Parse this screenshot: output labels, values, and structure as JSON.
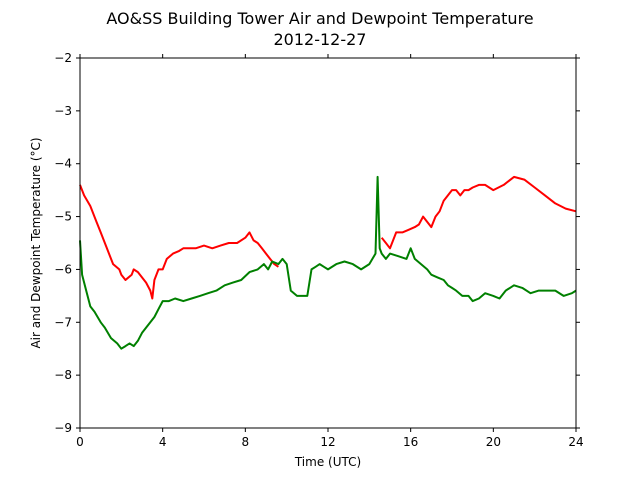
{
  "chart_data": {
    "type": "line",
    "title": "AO&SS Building Tower Air and Dewpoint Temperature",
    "subtitle": "2012-12-27",
    "xlabel": "Time (UTC)",
    "ylabel": "Air and Dewpoint Temperature (°C)",
    "xlim": [
      0,
      24
    ],
    "ylim": [
      -9,
      -2
    ],
    "xticks": [
      0,
      4,
      8,
      12,
      16,
      20,
      24
    ],
    "yticks": [
      -9,
      -8,
      -7,
      -6,
      -5,
      -4,
      -3,
      -2
    ],
    "grid": false,
    "legend": "none",
    "series": [
      {
        "color": "#ff0000",
        "x": [
          0,
          0.2,
          0.5,
          0.8,
          1.0,
          1.3,
          1.6,
          1.9,
          2.0,
          2.2,
          2.5,
          2.6,
          2.8,
          3.0,
          3.2,
          3.4,
          3.5,
          3.6,
          3.8,
          4.0,
          4.2,
          4.5,
          4.8,
          5.0,
          5.3,
          5.6,
          6.0,
          6.4,
          6.8,
          7.2,
          7.6,
          8.0,
          8.2,
          8.4,
          8.6,
          8.8,
          9.0,
          9.2,
          9.4,
          9.6
        ],
        "y": [
          -4.4,
          -4.6,
          -4.8,
          -5.1,
          -5.3,
          -5.6,
          -5.9,
          -6.0,
          -6.1,
          -6.2,
          -6.1,
          -6.0,
          -6.05,
          -6.15,
          -6.25,
          -6.4,
          -6.55,
          -6.2,
          -6.0,
          -6.0,
          -5.8,
          -5.7,
          -5.65,
          -5.6,
          -5.6,
          -5.6,
          -5.55,
          -5.6,
          -5.55,
          -5.5,
          -5.5,
          -5.4,
          -5.3,
          -5.45,
          -5.5,
          -5.6,
          -5.7,
          -5.8,
          -5.9,
          -5.95
        ]
      },
      {
        "color": "#ff0000",
        "x": [
          14.6,
          14.8,
          15.0,
          15.3,
          15.6,
          15.9,
          16.2,
          16.4,
          16.6,
          16.8,
          17.0,
          17.2,
          17.4,
          17.6,
          17.8,
          18.0,
          18.2,
          18.4,
          18.6,
          18.8,
          19.0,
          19.3,
          19.6,
          20.0,
          20.5,
          21.0,
          21.5,
          22.0,
          22.5,
          23.0,
          23.5,
          24.0
        ],
        "y": [
          -5.4,
          -5.5,
          -5.6,
          -5.3,
          -5.3,
          -5.25,
          -5.2,
          -5.15,
          -5.0,
          -5.1,
          -5.2,
          -5.0,
          -4.9,
          -4.7,
          -4.6,
          -4.5,
          -4.5,
          -4.6,
          -4.5,
          -4.5,
          -4.45,
          -4.4,
          -4.4,
          -4.5,
          -4.4,
          -4.25,
          -4.3,
          -4.45,
          -4.6,
          -4.75,
          -4.85,
          -4.9
        ]
      },
      {
        "color": "#008000",
        "x": [
          0,
          0.1,
          0.3,
          0.5,
          0.7,
          1.0,
          1.2,
          1.5,
          1.8,
          2.0,
          2.2,
          2.4,
          2.6,
          2.8,
          3.0,
          3.2,
          3.4,
          3.6,
          3.8,
          4.0,
          4.3,
          4.6,
          5.0,
          5.4,
          5.8,
          6.2,
          6.6,
          7.0,
          7.4,
          7.8,
          8.2,
          8.6,
          8.9,
          9.1,
          9.3,
          9.6,
          9.8,
          10.0,
          10.2,
          10.5,
          10.8,
          11.0,
          11.2,
          11.4,
          11.6,
          11.8,
          12.0,
          12.4,
          12.8,
          13.2,
          13.6,
          14.0,
          14.3,
          14.4,
          14.5,
          14.6,
          14.8,
          15.0,
          15.4,
          15.8,
          16.0,
          16.2,
          16.5,
          16.8,
          17.0,
          17.3,
          17.6,
          17.8,
          18.0,
          18.2,
          18.5,
          18.8,
          19.0,
          19.3,
          19.6,
          20.0,
          20.3,
          20.6,
          21.0,
          21.4,
          21.8,
          22.2,
          22.6,
          23.0,
          23.4,
          23.8,
          24.0
        ],
        "y": [
          -5.45,
          -6.1,
          -6.4,
          -6.7,
          -6.8,
          -7.0,
          -7.1,
          -7.3,
          -7.4,
          -7.5,
          -7.45,
          -7.4,
          -7.45,
          -7.35,
          -7.2,
          -7.1,
          -7.0,
          -6.9,
          -6.75,
          -6.6,
          -6.6,
          -6.55,
          -6.6,
          -6.55,
          -6.5,
          -6.45,
          -6.4,
          -6.3,
          -6.25,
          -6.2,
          -6.05,
          -6.0,
          -5.9,
          -6.0,
          -5.85,
          -5.9,
          -5.8,
          -5.9,
          -6.4,
          -6.5,
          -6.5,
          -6.5,
          -6.0,
          -5.95,
          -5.9,
          -5.95,
          -6.0,
          -5.9,
          -5.85,
          -5.9,
          -6.0,
          -5.9,
          -5.7,
          -4.25,
          -5.6,
          -5.7,
          -5.8,
          -5.7,
          -5.75,
          -5.8,
          -5.6,
          -5.8,
          -5.9,
          -6.0,
          -6.1,
          -6.15,
          -6.2,
          -6.3,
          -6.35,
          -6.4,
          -6.5,
          -6.5,
          -6.6,
          -6.55,
          -6.45,
          -6.5,
          -6.55,
          -6.4,
          -6.3,
          -6.35,
          -6.45,
          -6.4,
          -6.4,
          -6.4,
          -6.5,
          -6.45,
          -6.4
        ]
      }
    ]
  }
}
